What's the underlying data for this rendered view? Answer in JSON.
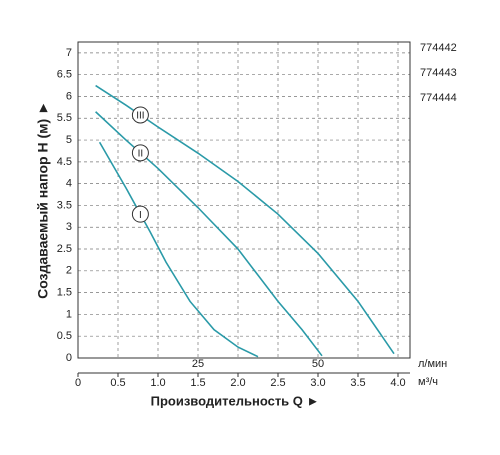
{
  "chart_data": {
    "type": "line",
    "y_label": "Создаваемый напор Н (м) ►",
    "x_label": "Производительность Q ►",
    "x_unit": "м³/ч",
    "x2_unit": "л/мин",
    "models": [
      "774442",
      "774443",
      "774444"
    ],
    "xlim": [
      0,
      4.15
    ],
    "xticks": [
      0,
      0.5,
      {
        "value": 1,
        "label": "1.0"
      },
      1.5,
      {
        "value": 2,
        "label": "2.0"
      },
      2.5,
      {
        "value": 3,
        "label": "3.0"
      },
      3.5,
      {
        "value": 4,
        "label": "4.0"
      }
    ],
    "x2lim": [
      0,
      69.17
    ],
    "x2ticks": [
      25,
      50
    ],
    "ylim": [
      0,
      7.25
    ],
    "yticks": [
      0,
      0.5,
      1,
      1.5,
      2,
      2.5,
      3,
      3.5,
      4,
      4.5,
      5,
      5.5,
      6,
      6.5,
      7
    ],
    "grid": true,
    "series": [
      {
        "name": "I",
        "color": "#2a9aa8",
        "x": [
          0.27,
          0.6,
          0.9,
          1.1,
          1.4,
          1.7,
          2.0,
          2.25
        ],
        "values": [
          4.95,
          3.9,
          2.9,
          2.2,
          1.3,
          0.65,
          0.25,
          0.03
        ]
      },
      {
        "name": "II",
        "color": "#2a9aa8",
        "x": [
          0.22,
          0.6,
          1.0,
          1.5,
          2.0,
          2.5,
          2.8,
          3.05
        ],
        "values": [
          5.65,
          5.0,
          4.35,
          3.45,
          2.5,
          1.3,
          0.65,
          0.05
        ]
      },
      {
        "name": "III",
        "color": "#2a9aa8",
        "x": [
          0.22,
          0.6,
          1.0,
          1.5,
          2.0,
          2.5,
          3.0,
          3.5,
          3.95
        ],
        "values": [
          6.25,
          5.8,
          5.3,
          4.7,
          4.05,
          3.3,
          2.4,
          1.3,
          0.1
        ]
      }
    ]
  }
}
